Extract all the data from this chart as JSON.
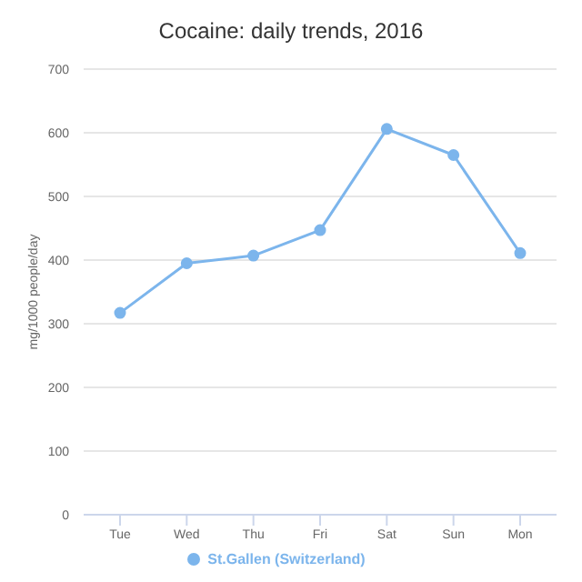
{
  "chart_data": {
    "type": "line",
    "title": "Cocaine: daily trends, 2016",
    "ylabel": "mg/1000 people/day",
    "categories": [
      "Tue",
      "Wed",
      "Thu",
      "Fri",
      "Sat",
      "Sun",
      "Mon"
    ],
    "series": [
      {
        "name": "St.Gallen (Switzerland)",
        "color": "#7cb5ec",
        "values": [
          317,
          395,
          407,
          447,
          606,
          565,
          411
        ]
      }
    ],
    "ylim": [
      0,
      700
    ],
    "yticks": [
      0,
      100,
      200,
      300,
      400,
      500,
      600,
      700
    ],
    "grid": "y",
    "legend": "bottom",
    "marker": "circle",
    "line_style": "solid"
  }
}
